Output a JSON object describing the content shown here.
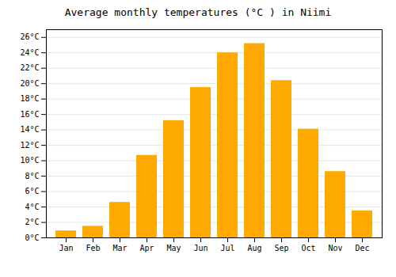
{
  "chart_data": {
    "type": "bar",
    "title": "Average monthly temperatures (°C ) in Niimi",
    "categories": [
      "Jan",
      "Feb",
      "Mar",
      "Apr",
      "May",
      "Jun",
      "Jul",
      "Aug",
      "Sep",
      "Oct",
      "Nov",
      "Dec"
    ],
    "values": [
      0.9,
      1.5,
      4.6,
      10.7,
      15.2,
      19.5,
      24.0,
      25.2,
      20.4,
      14.1,
      8.6,
      3.5
    ],
    "color": "#FFAA00",
    "ylim": [
      0,
      27
    ],
    "yticks": [
      {
        "value": 0,
        "label": "0°C"
      },
      {
        "value": 2,
        "label": "2°C"
      },
      {
        "value": 4,
        "label": "4°C"
      },
      {
        "value": 6,
        "label": "6°C"
      },
      {
        "value": 8,
        "label": "8°C"
      },
      {
        "value": 10,
        "label": "10°C"
      },
      {
        "value": 12,
        "label": "12°C"
      },
      {
        "value": 14,
        "label": "14°C"
      },
      {
        "value": 16,
        "label": "16°C"
      },
      {
        "value": 18,
        "label": "18°C"
      },
      {
        "value": 20,
        "label": "20°C"
      },
      {
        "value": 22,
        "label": "22°C"
      },
      {
        "value": 24,
        "label": "24°C"
      },
      {
        "value": 26,
        "label": "26°C"
      }
    ],
    "grid": true
  }
}
